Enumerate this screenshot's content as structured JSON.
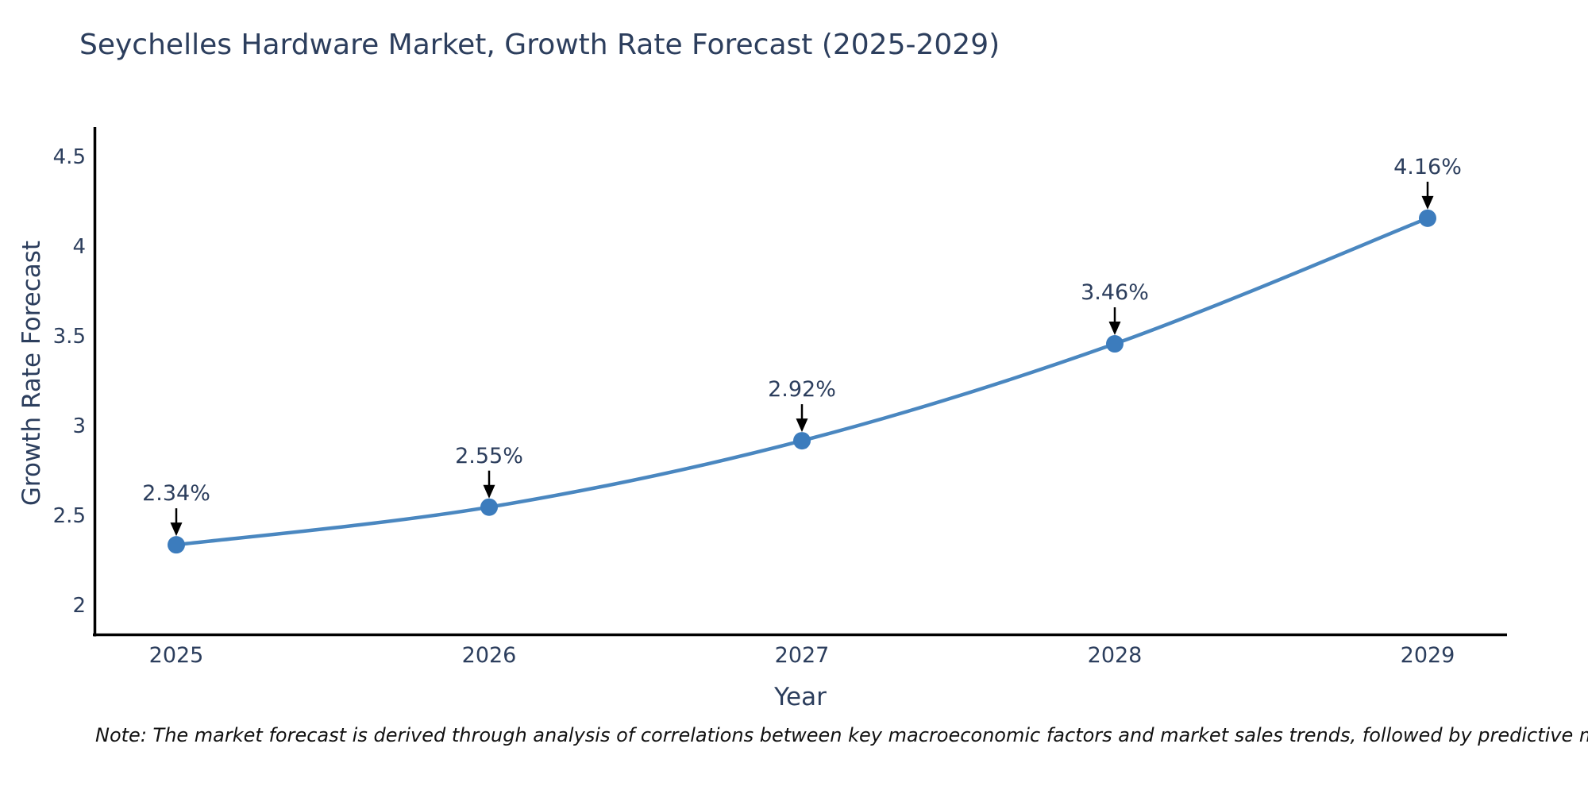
{
  "chart_data": {
    "type": "line",
    "title": "Seychelles Hardware Market, Growth Rate Forecast (2025-2029)",
    "xlabel": "Year",
    "ylabel": "Growth Rate Forecast",
    "categories": [
      "2025",
      "2026",
      "2027",
      "2028",
      "2029"
    ],
    "series": [
      {
        "name": "Growth Rate Forecast",
        "values": [
          2.34,
          2.55,
          2.92,
          3.46,
          4.16
        ]
      }
    ],
    "point_labels": [
      "2.34%",
      "2.55%",
      "2.92%",
      "3.46%",
      "4.16%"
    ],
    "y_ticks": [
      "2",
      "2.5",
      "3",
      "3.5",
      "4",
      "4.5"
    ],
    "y_tick_values": [
      2,
      2.5,
      3,
      3.5,
      4,
      4.5
    ],
    "ylim": [
      1.84,
      4.67
    ],
    "grid": false,
    "legend_position": "none",
    "line_shape": "spline",
    "line_color": "#4a87c0",
    "marker_color": "#3c7cbd",
    "arrow_color": "#000000",
    "axis_color": "#000000",
    "text_color": "#2c3e5d",
    "note": "Note: The market forecast is derived through analysis of correlations between key macroeconomic factors and market sales trends, followed by predictive modeling to project future sales"
  }
}
